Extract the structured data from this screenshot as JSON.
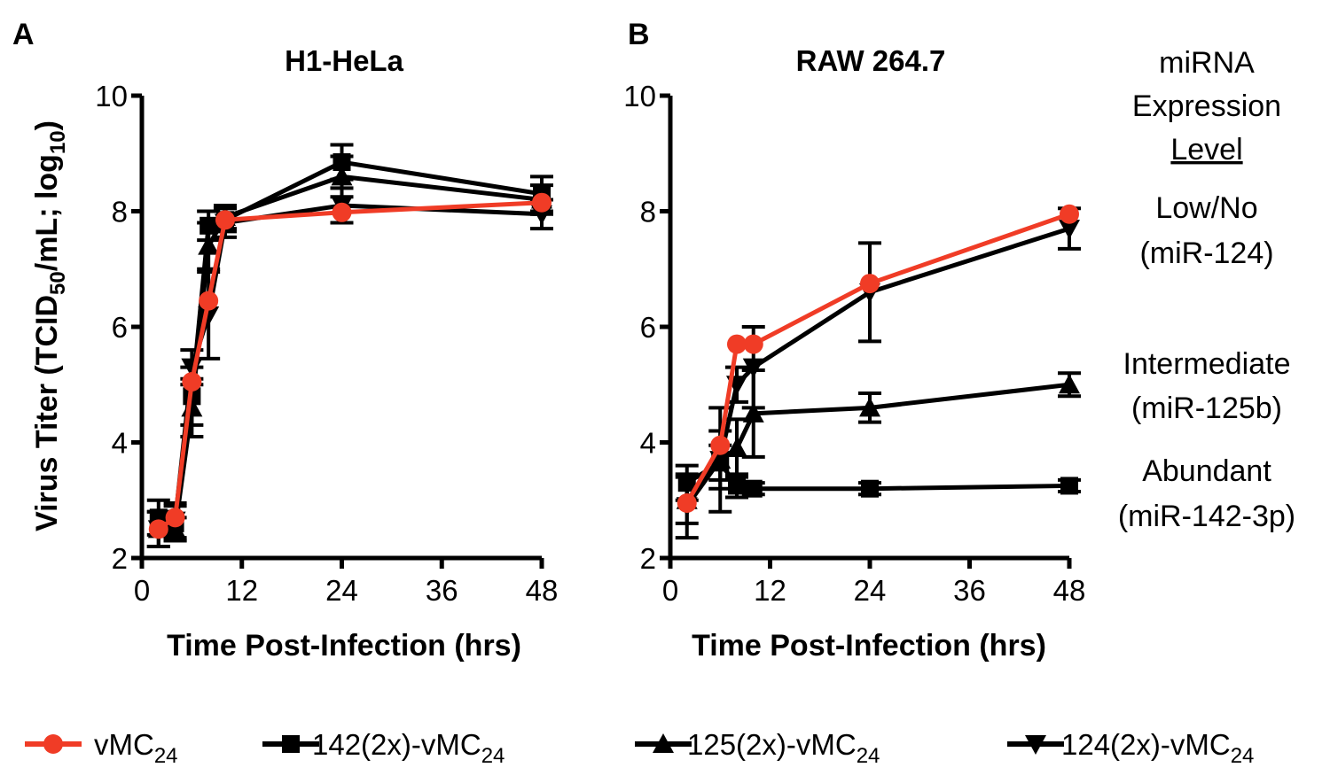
{
  "chart_data": [
    {
      "type": "line",
      "panel_label": "A",
      "title": "H1-HeLa",
      "xlabel": "Time Post-Infection (hrs)",
      "ylabel": "Virus Titer (TCID50/mL; log10)",
      "ylabel_parts": {
        "main": "Virus Titer (TCID",
        "sub1": "50",
        "mid": "/mL; log",
        "sub2": "10",
        "end": ")"
      },
      "xlim": [
        0,
        48
      ],
      "ylim": [
        2,
        10
      ],
      "xticks": [
        0,
        12,
        24,
        36,
        48
      ],
      "yticks": [
        2,
        4,
        6,
        8,
        10
      ],
      "series": [
        {
          "name": "142(2x)-vMC24",
          "x": [
            2,
            4,
            6,
            8,
            10,
            24,
            48
          ],
          "y": [
            2.7,
            2.6,
            4.8,
            7.75,
            7.85,
            8.85,
            8.3
          ],
          "err": [
            0.3,
            0.3,
            0.5,
            0.25,
            0.2,
            0.3,
            0.3
          ]
        },
        {
          "name": "125(2x)-vMC24",
          "x": [
            2,
            4,
            6,
            8,
            10,
            24,
            48
          ],
          "y": [
            2.5,
            2.5,
            4.6,
            7.4,
            7.9,
            8.6,
            8.2
          ],
          "err": [
            0.3,
            0.2,
            0.5,
            0.4,
            0.2,
            0.35,
            0.25
          ]
        },
        {
          "name": "124(2x)-vMC24",
          "x": [
            2,
            4,
            6,
            8,
            10,
            24,
            48
          ],
          "y": [
            2.5,
            2.65,
            5.3,
            6.2,
            7.8,
            8.1,
            7.95
          ],
          "err": [
            0.3,
            0.3,
            0.3,
            0.75,
            0.25,
            0.3,
            0.25
          ]
        },
        {
          "name": "vMC24",
          "x": [
            2,
            4,
            6,
            8,
            10,
            24,
            48
          ],
          "y": [
            2.5,
            2.7,
            5.05,
            6.45,
            7.85,
            7.98,
            8.15
          ],
          "err": [
            0,
            0,
            0,
            0,
            0,
            0,
            0
          ]
        }
      ]
    },
    {
      "type": "line",
      "panel_label": "B",
      "title": "RAW 264.7",
      "xlabel": "Time Post-Infection (hrs)",
      "xlim": [
        0,
        48
      ],
      "ylim": [
        2,
        10
      ],
      "xticks": [
        0,
        12,
        24,
        36,
        48
      ],
      "yticks": [
        2,
        4,
        6,
        8,
        10
      ],
      "series": [
        {
          "name": "142(2x)-vMC24",
          "x": [
            2,
            6,
            8,
            10,
            24,
            48
          ],
          "y": [
            3.3,
            3.65,
            3.25,
            3.2,
            3.2,
            3.25
          ],
          "err": [
            0.3,
            0.3,
            0.2,
            0.1,
            0.1,
            0.1
          ]
        },
        {
          "name": "125(2x)-vMC24",
          "x": [
            2,
            6,
            8,
            10,
            24,
            48
          ],
          "y": [
            3.0,
            3.7,
            3.9,
            4.5,
            4.6,
            5.0
          ],
          "err": [
            0.4,
            0.5,
            0.5,
            0.75,
            0.25,
            0.2
          ]
        },
        {
          "name": "124(2x)-vMC24",
          "x": [
            2,
            6,
            8,
            10,
            24,
            48
          ],
          "y": [
            2.9,
            3.7,
            5.0,
            5.3,
            6.6,
            7.7
          ],
          "err": [
            0.55,
            0.9,
            0.3,
            0.7,
            0.85,
            0.35
          ]
        },
        {
          "name": "vMC24",
          "x": [
            2,
            6,
            8,
            10,
            24,
            48
          ],
          "y": [
            2.95,
            3.95,
            5.7,
            5.7,
            6.75,
            7.95
          ],
          "err": [
            0,
            0,
            0,
            0,
            0,
            0
          ]
        }
      ],
      "annotations": {
        "header": [
          "miRNA",
          "Expression",
          "Level"
        ],
        "low": [
          "Low/No",
          "(miR-124)"
        ],
        "intermediate": [
          "Intermediate",
          "(miR-125b)"
        ],
        "abundant": [
          "Abundant",
          "(miR-142-3p)"
        ]
      }
    }
  ],
  "legend": [
    {
      "base": "vMC",
      "sub": "24",
      "marker": "circle",
      "color": "#f03c26"
    },
    {
      "base": "142(2x)-vMC",
      "sub": "24",
      "marker": "square",
      "color": "#000000"
    },
    {
      "base": "125(2x)-vMC",
      "sub": "24",
      "marker": "triangle-up",
      "color": "#000000"
    },
    {
      "base": "124(2x)-vMC",
      "sub": "24",
      "marker": "triangle-down",
      "color": "#000000"
    }
  ],
  "colors": {
    "red": "#f03c26",
    "black": "#000000"
  }
}
